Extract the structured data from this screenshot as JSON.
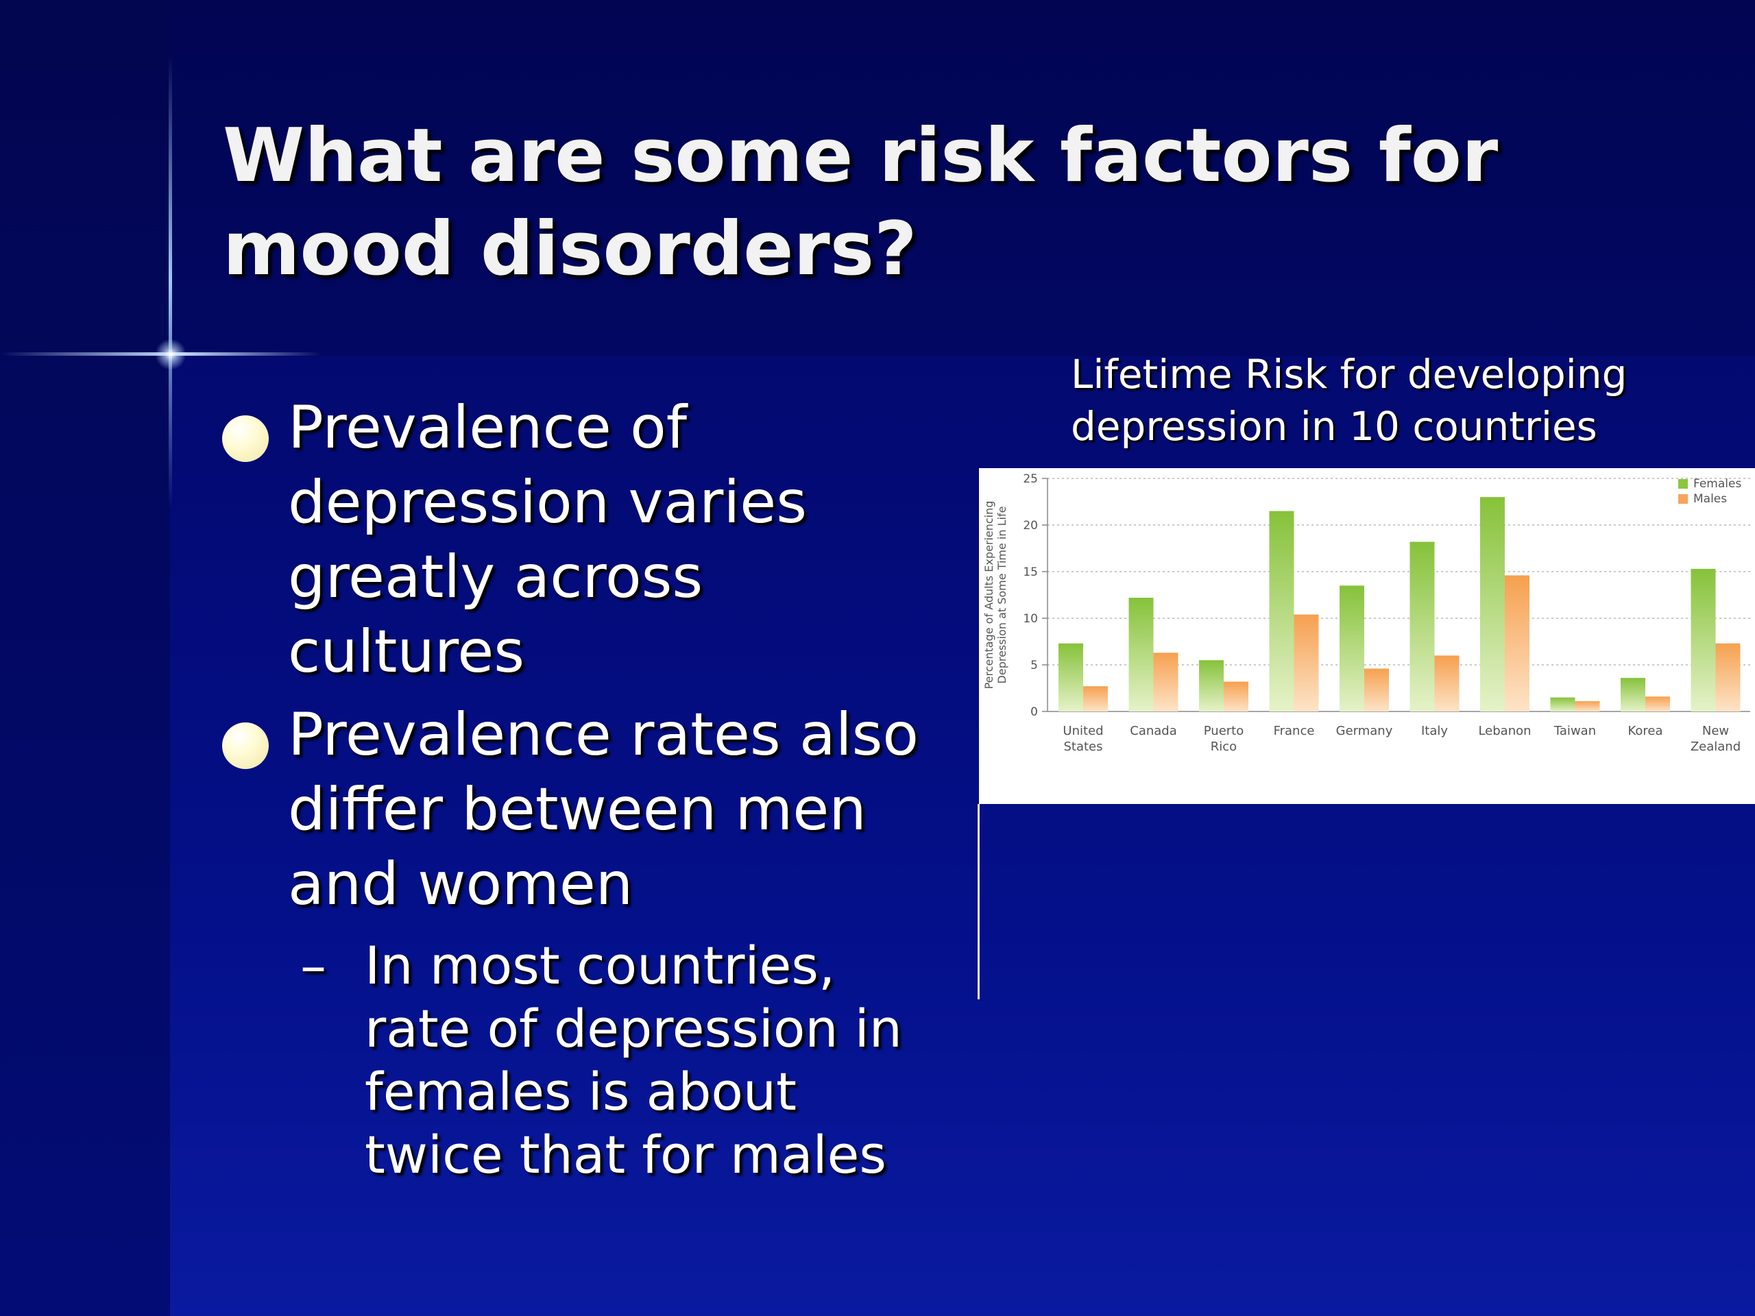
{
  "slide": {
    "title_lines": [
      "What are some risk factors for",
      "mood disorders?"
    ],
    "bullets": [
      {
        "lines": [
          "Prevalence of",
          "depression varies",
          "greatly across",
          "cultures"
        ]
      },
      {
        "lines": [
          "Prevalence rates also",
          "differ between men",
          "and women"
        ],
        "sub": {
          "dash": "–",
          "lines": [
            "In most countries,",
            "rate of depression in",
            "females is about",
            "twice that for males"
          ]
        }
      }
    ],
    "chart_caption_lines": [
      "Lifetime Risk for developing",
      "depression in 10 countries"
    ]
  },
  "chart_data": {
    "type": "bar",
    "title": "Lifetime Risk for developing depression in 10 countries",
    "categories": [
      "United States",
      "Canada",
      "Puerto Rico",
      "France",
      "Germany",
      "Italy",
      "Lebanon",
      "Taiwan",
      "Korea",
      "New Zealand"
    ],
    "category_lines": [
      [
        "United",
        "States"
      ],
      [
        "Canada"
      ],
      [
        "Puerto",
        "Rico"
      ],
      [
        "France"
      ],
      [
        "Germany"
      ],
      [
        "Italy"
      ],
      [
        "Lebanon"
      ],
      [
        "Taiwan"
      ],
      [
        "Korea"
      ],
      [
        "New",
        "Zealand"
      ]
    ],
    "series": [
      {
        "name": "Females",
        "values": [
          7.3,
          12.2,
          5.5,
          21.5,
          13.5,
          18.2,
          23.0,
          1.5,
          3.6,
          15.3
        ],
        "color": "#8cc63f"
      },
      {
        "name": "Males",
        "values": [
          2.7,
          6.3,
          3.2,
          10.4,
          4.6,
          6.0,
          14.6,
          1.1,
          1.6,
          7.3
        ],
        "color": "#f7a35c"
      }
    ],
    "ylabel_lines": [
      "Percentage of Adults Experiencing",
      "Depression at Some Time in Life"
    ],
    "yticks": [
      "0",
      "5",
      "10",
      "15",
      "20",
      "25"
    ],
    "ylim": [
      0,
      25
    ],
    "grid": true,
    "legend_position": "top-right"
  }
}
